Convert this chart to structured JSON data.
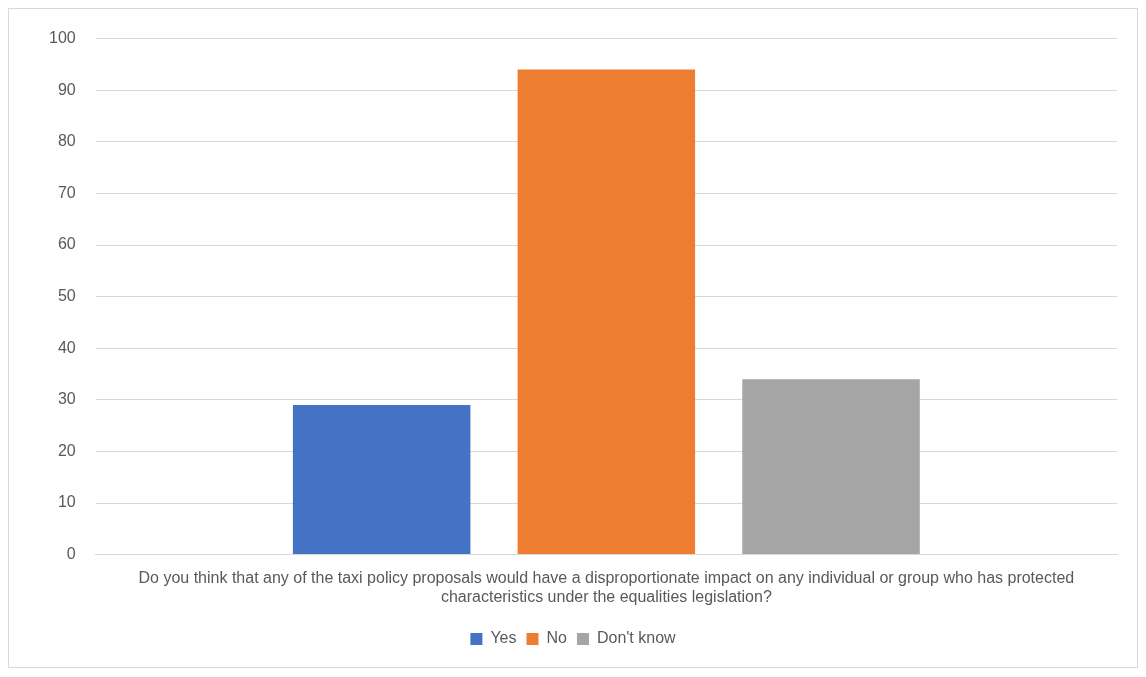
{
  "chart_data": {
    "type": "bar",
    "categories": [
      "Do you think that any of the taxi policy proposals would have a disproportionate impact on any individual or group who has protected characteristics under the equalities legislation?"
    ],
    "series": [
      {
        "name": "Yes",
        "color": "#4472c4",
        "values": [
          29
        ]
      },
      {
        "name": "No",
        "color": "#ed7d31",
        "values": [
          94
        ]
      },
      {
        "name": "Don't know",
        "color": "#a5a5a5",
        "values": [
          34
        ]
      }
    ],
    "ylim": [
      0,
      100
    ],
    "yticks": [
      0,
      10,
      20,
      30,
      40,
      50,
      60,
      70,
      80,
      90,
      100
    ],
    "grid": "y",
    "legend": "bottom"
  }
}
